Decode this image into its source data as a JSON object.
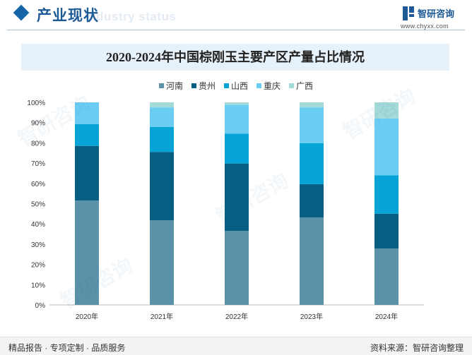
{
  "header": {
    "title": "产业现状",
    "subtitle_en": "Industry status"
  },
  "brand": {
    "name": "智研咨询",
    "url": "www.chyxx.com"
  },
  "footer": {
    "left": "精品报告 · 专项定制 · 品质服务",
    "source": "资料来源：智研咨询整理"
  },
  "colors": {
    "accent": "#1565a8",
    "河南": "#5b92a8",
    "贵州": "#065f82",
    "山西": "#06a3d6",
    "重庆": "#6ccdf3",
    "广西": "#a4dbd8"
  },
  "chart_data": {
    "type": "bar",
    "stacked": true,
    "title": "2020-2024年中国棕刚玉主要产区产量占比情况",
    "categories": [
      "2020年",
      "2021年",
      "2022年",
      "2023年",
      "2024年"
    ],
    "series": [
      {
        "name": "河南",
        "values": [
          51.5,
          41.8,
          36.5,
          43.2,
          27.8
        ]
      },
      {
        "name": "贵州",
        "values": [
          27.0,
          33.7,
          33.3,
          16.4,
          17.2
        ]
      },
      {
        "name": "山西",
        "values": [
          10.8,
          12.3,
          14.7,
          20.2,
          19.0
        ]
      },
      {
        "name": "重庆",
        "values": [
          10.7,
          9.7,
          14.3,
          17.7,
          28.0
        ]
      },
      {
        "name": "广西",
        "values": [
          0.0,
          2.5,
          1.2,
          2.5,
          8.0
        ]
      }
    ],
    "ylim": [
      0,
      100
    ],
    "yticks": [
      "0%",
      "10%",
      "20%",
      "30%",
      "40%",
      "50%",
      "60%",
      "70%",
      "80%",
      "90%",
      "100%"
    ],
    "grid": false,
    "legend_position": "top"
  }
}
